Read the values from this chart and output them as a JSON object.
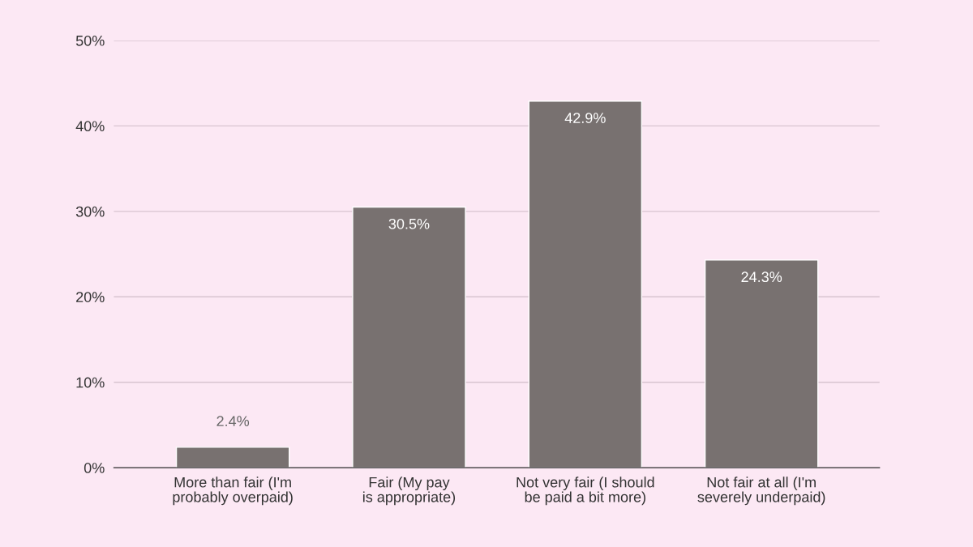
{
  "chart_data": {
    "type": "bar",
    "categories": [
      "More than fair (I'm probably overpaid)",
      "Fair (My pay is appropriate)",
      "Not very fair (I should be paid a bit more)",
      "Not fair at all (I'm severely underpaid)"
    ],
    "values": [
      2.4,
      30.5,
      42.9,
      24.3
    ],
    "value_labels": [
      "2.4%",
      "30.5%",
      "42.9%",
      "24.3%"
    ],
    "color": "#787170",
    "ylim": [
      0,
      50
    ],
    "yticks": [
      {
        "value": 0,
        "label": "0%"
      },
      {
        "value": 10,
        "label": "10%"
      },
      {
        "value": 20,
        "label": "20%"
      },
      {
        "value": 30,
        "label": "30%"
      },
      {
        "value": 40,
        "label": "40%"
      },
      {
        "value": 50,
        "label": "50%"
      }
    ],
    "grid": "y"
  }
}
